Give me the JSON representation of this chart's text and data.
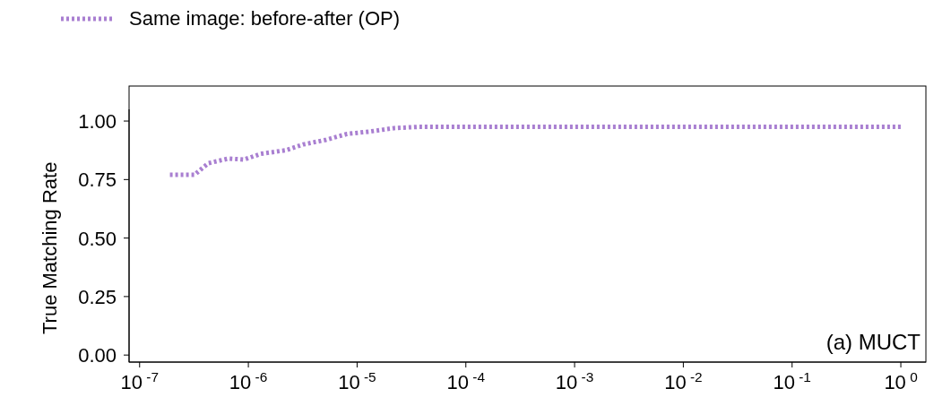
{
  "chart_data": {
    "type": "line",
    "ylabel": "True Matching Rate",
    "annotations": [
      "(a) MUCT"
    ],
    "x": [
      1.9e-07,
      3.2e-07,
      3.8e-07,
      4.3e-07,
      6.6e-07,
      9.1e-07,
      1.3e-06,
      2.2e-06,
      3.2e-06,
      5.2e-06,
      8.1e-06,
      1.3e-05,
      2.2e-05,
      3.6e-05,
      1
    ],
    "series": [
      {
        "name": "Same image: before-after (OP)",
        "color": "#a97fd1",
        "values": [
          0.77,
          0.77,
          0.8,
          0.82,
          0.84,
          0.835,
          0.86,
          0.875,
          0.9,
          0.92,
          0.945,
          0.955,
          0.97,
          0.975,
          0.975
        ]
      }
    ],
    "log": "x",
    "xlim": [
      8e-08,
      1.7
    ],
    "xticks": [
      {
        "value": 1e-07,
        "label": "10$^{-7}$"
      },
      {
        "value": 1e-06,
        "label": "10$^{-6}$"
      },
      {
        "value": 1e-05,
        "label": "10$^{-5}$"
      },
      {
        "value": 0.0001,
        "label": "10$^{-4}$"
      },
      {
        "value": 0.001,
        "label": "10$^{-3}$"
      },
      {
        "value": 0.01,
        "label": "10$^{-2}$"
      },
      {
        "value": 0.1,
        "label": "10$^{-1}$"
      },
      {
        "value": 1,
        "label": "10$^{0}$"
      }
    ],
    "ylim": [
      -0.03,
      1.05
    ],
    "yticks": [
      {
        "value": 0,
        "label": "0.00"
      },
      {
        "value": 0.25,
        "label": "0.25"
      },
      {
        "value": 0.5,
        "label": "0.50"
      },
      {
        "value": 0.75,
        "label": "0.75"
      },
      {
        "value": 1,
        "label": "1.00"
      }
    ],
    "grid": false,
    "legend": "top left",
    "line_style": "dotted",
    "marker": "none"
  }
}
